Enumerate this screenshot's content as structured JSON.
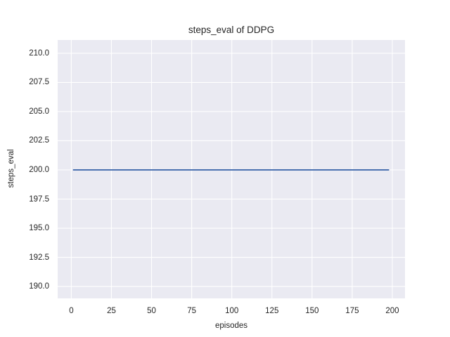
{
  "chart_data": {
    "type": "line",
    "title": "steps_eval of DDPG",
    "xlabel": "episodes",
    "ylabel": "steps_eval",
    "xlim": [
      -8.5,
      207.9
    ],
    "ylim": [
      188.98,
      211.14
    ],
    "x_ticks": [
      0,
      25,
      50,
      75,
      100,
      125,
      150,
      175,
      200
    ],
    "x_tick_labels": [
      "0",
      "25",
      "50",
      "75",
      "100",
      "125",
      "150",
      "175",
      "200"
    ],
    "y_ticks": [
      190.0,
      192.5,
      195.0,
      197.5,
      200.0,
      202.5,
      205.0,
      207.5,
      210.0
    ],
    "y_tick_labels": [
      "190.0",
      "192.5",
      "195.0",
      "197.5",
      "200.0",
      "202.5",
      "205.0",
      "207.5",
      "210.0"
    ],
    "grid": true,
    "legend": null,
    "series": [
      {
        "name": "DDPG",
        "color": "#4C72B0",
        "x": [
          1,
          198
        ],
        "y": [
          200,
          200
        ],
        "constant_value": 200
      }
    ],
    "colors": {
      "figure_background": "#FFFFFF",
      "axes_background": "#EAEAF2",
      "gridline": "#FFFFFF",
      "line": "#4C72B0",
      "text": "#262626"
    }
  }
}
